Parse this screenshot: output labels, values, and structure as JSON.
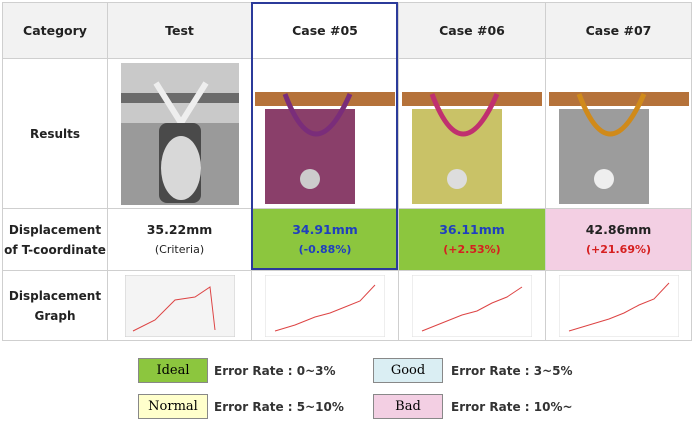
{
  "table": {
    "header": [
      "Category",
      "Test",
      "Case #05",
      "Case #06",
      "Case #07"
    ],
    "rows": [
      {
        "label": [
          "Results"
        ]
      },
      {
        "label": [
          "Displacement",
          "of T-coordinate"
        ],
        "cells": [
          [
            "35.22mm",
            "(Criteria)"
          ],
          [
            "34.91mm",
            "(-0.88%)"
          ],
          [
            "36.11mm",
            "(+2.53%)"
          ],
          [
            "42.86mm",
            "(+21.69%)"
          ]
        ]
      },
      {
        "label": [
          "Displacement",
          "Graph"
        ]
      }
    ]
  },
  "legend": [
    {
      "name": "Ideal",
      "text": "Error Rate : 0~3%"
    },
    {
      "name": "Good",
      "text": "Error Rate : 3~5%"
    },
    {
      "name": "Normal",
      "text": "Error Rate : 5~10%"
    },
    {
      "name": "Bad",
      "text": "Error Rate : 10%~"
    }
  ]
}
